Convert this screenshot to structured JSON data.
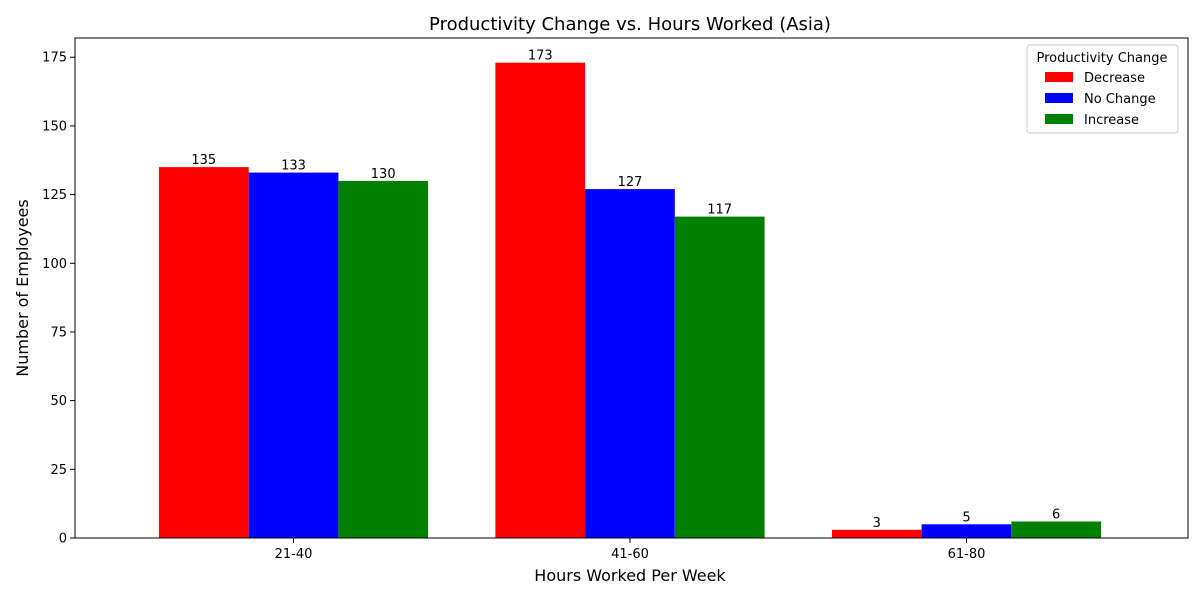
{
  "chart_data": {
    "type": "bar",
    "title": "Productivity Change vs. Hours Worked (Asia)",
    "xlabel": "Hours Worked Per Week",
    "ylabel": "Number of Employees",
    "categories": [
      "21-40",
      "41-60",
      "61-80"
    ],
    "ylim": [
      0,
      182
    ],
    "yticks": [
      0,
      25,
      50,
      75,
      100,
      125,
      150,
      175
    ],
    "grid": false,
    "legend": {
      "title": "Productivity Change",
      "placement": "top-right"
    },
    "series": [
      {
        "name": "Decrease",
        "color": "#ff0000",
        "values": [
          135,
          173,
          3
        ]
      },
      {
        "name": "No Change",
        "color": "#0000ff",
        "values": [
          133,
          127,
          5
        ]
      },
      {
        "name": "Increase",
        "color": "#008000",
        "values": [
          130,
          117,
          6
        ]
      }
    ]
  }
}
